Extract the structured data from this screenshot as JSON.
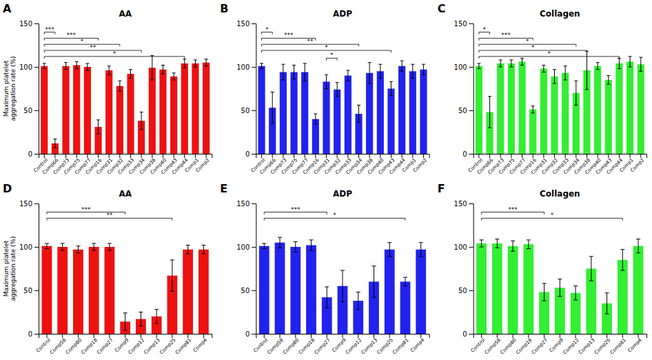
{
  "chart_data": [
    {
      "type": "bar",
      "title": "AA",
      "color": "#EE1111",
      "y_label": "Maximum platelet\naggregation rate (%)",
      "categories": [
        "Control",
        "Comp66",
        "Comp73",
        "Comp75",
        "Comp77",
        "Comp16",
        "Comp31",
        "Comp32",
        "Comp33",
        "Comp34",
        "Comp38",
        "Comp40",
        "Comp43",
        "Comp44",
        "Comp1",
        "Comp2"
      ],
      "values": [
        101,
        12,
        101,
        102,
        100,
        31,
        96,
        78,
        92,
        38,
        99,
        97,
        89,
        104,
        104,
        105
      ],
      "errors": [
        3,
        5,
        4,
        4,
        4,
        8,
        5,
        6,
        5,
        10,
        14,
        5,
        4,
        5,
        4,
        4
      ],
      "ylim": [
        0,
        150
      ],
      "yticks": [
        0,
        50,
        100,
        150
      ],
      "grid": false,
      "annotations": [
        {
          "text": "A"
        },
        {
          "text": "***",
          "x1": 0,
          "x2": 1,
          "y": 140
        },
        {
          "text": "***",
          "x1": 0,
          "x2": 5,
          "y": 133
        },
        {
          "text": "*",
          "x1": 0,
          "x2": 7,
          "y": 126
        },
        {
          "text": "**",
          "x1": 0,
          "x2": 9,
          "y": 119
        },
        {
          "text": "*",
          "x1": 0,
          "x2": 13,
          "y": 112
        }
      ]
    },
    {
      "type": "bar",
      "title": "ADP",
      "color": "#2222EE",
      "categories": [
        "Control",
        "Comp66",
        "Comp73",
        "Comp75",
        "Comp77",
        "Comp16",
        "Comp31",
        "Comp32",
        "Comp33",
        "Comp34",
        "Comp38",
        "Comp40",
        "Comp43",
        "Comp44",
        "Comp1",
        "Comp2"
      ],
      "values": [
        101,
        53,
        94,
        94,
        94,
        40,
        83,
        74,
        90,
        46,
        93,
        95,
        75,
        101,
        95,
        97
      ],
      "errors": [
        3,
        18,
        9,
        8,
        10,
        6,
        8,
        8,
        6,
        10,
        12,
        8,
        8,
        6,
        8,
        6
      ],
      "ylim": [
        0,
        150
      ],
      "yticks": [
        0,
        50,
        100,
        150
      ],
      "grid": false,
      "annotations": [
        {
          "text": "B"
        },
        {
          "text": "*",
          "x1": 0,
          "x2": 1,
          "y": 140
        },
        {
          "text": "***",
          "x1": 0,
          "x2": 5,
          "y": 133
        },
        {
          "text": "*",
          "x1": 6,
          "x2": 7,
          "y": 110
        },
        {
          "text": "**",
          "x1": 0,
          "x2": 9,
          "y": 126
        },
        {
          "text": "*",
          "x1": 0,
          "x2": 12,
          "y": 119
        }
      ]
    },
    {
      "type": "bar",
      "title": "Collagen",
      "color": "#33EE33",
      "categories": [
        "Control",
        "Comp66",
        "Comp73",
        "Comp75",
        "Comp77",
        "Comp16",
        "Comp31",
        "Comp32",
        "Comp33",
        "Comp34",
        "Comp38",
        "Comp40",
        "Comp43",
        "Comp44",
        "Comp1",
        "Comp2"
      ],
      "values": [
        101,
        48,
        104,
        104,
        106,
        51,
        98,
        89,
        93,
        70,
        96,
        101,
        85,
        104,
        106,
        103
      ],
      "errors": [
        3,
        18,
        4,
        4,
        4,
        4,
        4,
        8,
        8,
        14,
        22,
        4,
        5,
        6,
        6,
        8
      ],
      "ylim": [
        0,
        150
      ],
      "yticks": [
        0,
        50,
        100,
        150
      ],
      "grid": false,
      "annotations": [
        {
          "text": "C"
        },
        {
          "text": "*",
          "x1": 0,
          "x2": 1,
          "y": 140
        },
        {
          "text": "***",
          "x1": 0,
          "x2": 5,
          "y": 133
        },
        {
          "text": "*",
          "x1": 0,
          "x2": 9,
          "y": 126
        },
        {
          "text": "*",
          "x1": 0,
          "x2": 10,
          "y": 119
        },
        {
          "text": "*",
          "x1": 0,
          "x2": 13,
          "y": 112
        }
      ]
    },
    {
      "type": "bar",
      "title": "AA",
      "color": "#EE1111",
      "y_label": "Maximum platelet\naggregation rate (%)",
      "categories": [
        "Control",
        "Comp58",
        "Comp80",
        "Comp18",
        "Comp27",
        "Comp9",
        "Comp12",
        "Comp13",
        "Comp25",
        "Comp81",
        "Comp4"
      ],
      "values": [
        101,
        100,
        97,
        100,
        100,
        14,
        17,
        20,
        67,
        97,
        97
      ],
      "errors": [
        3,
        4,
        4,
        4,
        4,
        10,
        8,
        8,
        18,
        5,
        5
      ],
      "ylim": [
        0,
        150
      ],
      "yticks": [
        0,
        50,
        100,
        150
      ],
      "grid": false,
      "annotations": [
        {
          "text": "D"
        },
        {
          "text": "***",
          "x1": 0,
          "x2": 5,
          "y": 140
        },
        {
          "text": "**",
          "x1": 0,
          "x2": 8,
          "y": 133
        }
      ]
    },
    {
      "type": "bar",
      "title": "ADP",
      "color": "#2222EE",
      "categories": [
        "Control",
        "Comp58",
        "Comp80",
        "Comp18",
        "Comp27",
        "Comp9",
        "Comp12",
        "Comp13",
        "Comp25",
        "Comp81",
        "Comp4"
      ],
      "values": [
        101,
        105,
        100,
        102,
        42,
        55,
        38,
        60,
        97,
        60,
        97
      ],
      "errors": [
        3,
        6,
        6,
        6,
        12,
        18,
        10,
        18,
        8,
        5,
        8
      ],
      "ylim": [
        0,
        150
      ],
      "yticks": [
        0,
        50,
        100,
        150
      ],
      "grid": false,
      "annotations": [
        {
          "text": "E"
        },
        {
          "text": "***",
          "x1": 0,
          "x2": 4,
          "y": 140
        },
        {
          "text": "*",
          "x1": 0,
          "x2": 9,
          "y": 133
        }
      ]
    },
    {
      "type": "bar",
      "title": "Collagen",
      "color": "#33EE33",
      "categories": [
        "Control",
        "Comp58",
        "Comp80",
        "Comp18",
        "Comp27",
        "Comp9",
        "Comp12",
        "Comp13",
        "Comp25",
        "Comp81",
        "Comp4"
      ],
      "values": [
        104,
        104,
        101,
        103,
        48,
        53,
        47,
        75,
        35,
        85,
        101
      ],
      "errors": [
        4,
        5,
        6,
        5,
        10,
        10,
        8,
        14,
        12,
        12,
        8
      ],
      "ylim": [
        0,
        150
      ],
      "yticks": [
        0,
        50,
        100,
        150
      ],
      "grid": false,
      "annotations": [
        {
          "text": "F"
        },
        {
          "text": "***",
          "x1": 0,
          "x2": 4,
          "y": 140
        },
        {
          "text": "*",
          "x1": 0,
          "x2": 9,
          "y": 133
        }
      ]
    }
  ]
}
